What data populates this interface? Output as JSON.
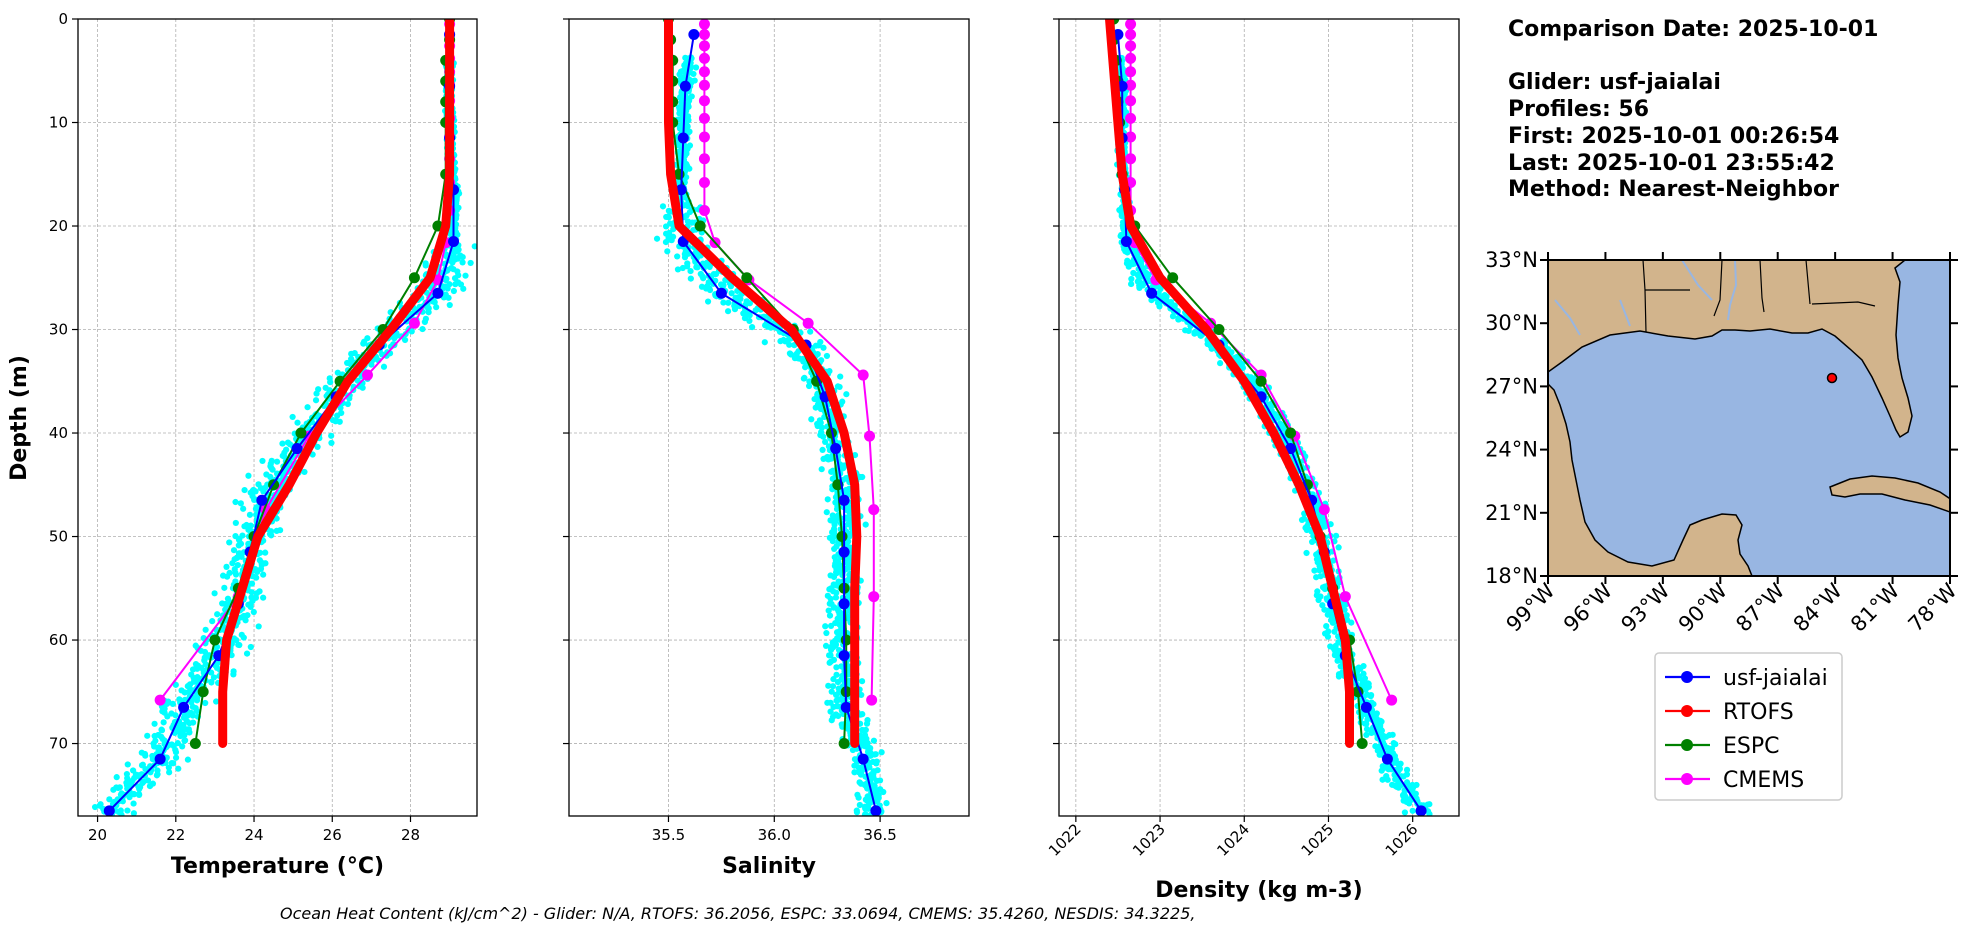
{
  "info": {
    "comparison_date": "Comparison Date: 2025-10-01",
    "glider": "Glider: usf-jaialai",
    "profiles": "Profiles: 56",
    "first": "First: 2025-10-01 00:26:54",
    "last": "Last: 2025-10-01 23:55:42",
    "method": "Method: Nearest-Neighbor"
  },
  "footer": "Ocean Heat Content (kJ/cm^2) - Glider: N/A,  RTOFS: 36.2056,  ESPC: 33.0694,  CMEMS: 35.4260,  NESDIS: 34.3225,",
  "colors": {
    "glider": "#0000ff",
    "rtofs": "#ff0000",
    "espc": "#008000",
    "cmems": "#ff00ff",
    "raw": "#00ffff",
    "land": "#d2b48c",
    "ocean": "#98b6e2"
  },
  "legend": [
    {
      "label": "usf-jaialai",
      "color": "#0000ff"
    },
    {
      "label": "RTOFS",
      "color": "#ff0000"
    },
    {
      "label": "ESPC",
      "color": "#008000"
    },
    {
      "label": "CMEMS",
      "color": "#ff00ff"
    }
  ],
  "map": {
    "lat_ticks": [
      "18°N",
      "21°N",
      "24°N",
      "27°N",
      "30°N",
      "33°N"
    ],
    "lon_ticks": [
      "99°W",
      "96°W",
      "93°W",
      "90°W",
      "87°W",
      "84°W",
      "81°W",
      "78°W"
    ],
    "extent": {
      "lon": [
        -99,
        -78
      ],
      "lat": [
        18,
        33
      ]
    },
    "glider_position": {
      "lon": -84.6,
      "lat": 27.6
    }
  },
  "chart_data": [
    {
      "type": "line",
      "xlabel": "Temperature (°C)",
      "ylabel": "Depth (m)",
      "xlim": [
        19.5,
        29.7
      ],
      "ylim": [
        77,
        0
      ],
      "xticks": [
        20,
        22,
        24,
        26,
        28
      ],
      "xtick_labels": [
        "20",
        "22",
        "24",
        "26",
        "28"
      ],
      "yticks": [
        0,
        10,
        20,
        30,
        40,
        50,
        60,
        70
      ],
      "ytick_labels": [
        "0",
        "10",
        "20",
        "30",
        "40",
        "50",
        "60",
        "70"
      ],
      "grid": true,
      "series": [
        {
          "name": "usf-jaialai",
          "depth": [
            1.5,
            6.5,
            11.5,
            16.5,
            21.5,
            26.5,
            31.5,
            36.5,
            41.5,
            46.5,
            51.5,
            56.5,
            61.5,
            66.5,
            71.5,
            76.5
          ],
          "values": [
            29.0,
            29.0,
            29.0,
            29.1,
            29.1,
            28.7,
            27.2,
            26.1,
            25.1,
            24.2,
            23.9,
            23.6,
            23.1,
            22.2,
            21.6,
            20.3
          ]
        },
        {
          "name": "RTOFS",
          "depth": [
            0,
            5,
            10,
            15,
            20,
            25,
            30,
            35,
            40,
            45,
            50,
            55,
            60,
            65,
            70
          ],
          "values": [
            29.0,
            29.0,
            29.0,
            29.0,
            28.9,
            28.5,
            27.5,
            26.4,
            25.6,
            24.9,
            24.1,
            23.7,
            23.3,
            23.2,
            23.2
          ]
        },
        {
          "name": "ESPC",
          "depth": [
            0,
            2,
            4,
            6,
            8,
            10,
            15,
            20,
            25,
            30,
            35,
            40,
            45,
            50,
            55,
            60,
            65,
            70
          ],
          "values": [
            29.0,
            29.0,
            28.9,
            28.9,
            28.9,
            28.9,
            28.9,
            28.7,
            28.1,
            27.3,
            26.2,
            25.2,
            24.5,
            24.0,
            23.6,
            23.0,
            22.7,
            22.5
          ]
        },
        {
          "name": "CMEMS",
          "depth": [
            0.5,
            1.5,
            2.6,
            3.8,
            5.1,
            6.4,
            7.9,
            9.6,
            11.4,
            13.5,
            15.8,
            18.5,
            21.6,
            25.2,
            29.4,
            34.4,
            40.3,
            47.4,
            55.8,
            65.8
          ],
          "values": [
            29.0,
            29.0,
            29.0,
            29.0,
            29.0,
            29.0,
            29.0,
            29.0,
            29.0,
            29.0,
            29.0,
            29.0,
            28.9,
            28.7,
            28.1,
            26.9,
            25.4,
            24.3,
            23.6,
            21.6
          ]
        }
      ]
    },
    {
      "type": "line",
      "xlabel": "Salinity",
      "xlim": [
        35.03,
        36.92
      ],
      "ylim": [
        77,
        0
      ],
      "xticks": [
        35.5,
        36.0,
        36.5
      ],
      "xtick_labels": [
        "35.5",
        "36.0",
        "36.5"
      ],
      "grid": true,
      "series": [
        {
          "name": "usf-jaialai",
          "depth": [
            1.5,
            6.5,
            11.5,
            16.5,
            21.5,
            26.5,
            31.5,
            36.5,
            41.5,
            46.5,
            51.5,
            56.5,
            61.5,
            66.5,
            71.5,
            76.5
          ],
          "values": [
            35.62,
            35.58,
            35.57,
            35.56,
            35.57,
            35.75,
            36.15,
            36.24,
            36.29,
            36.33,
            36.33,
            36.33,
            36.33,
            36.34,
            36.42,
            36.48
          ]
        },
        {
          "name": "RTOFS",
          "depth": [
            0,
            5,
            10,
            15,
            20,
            25,
            30,
            35,
            40,
            45,
            50,
            55,
            60,
            65,
            70
          ],
          "values": [
            35.5,
            35.5,
            35.5,
            35.51,
            35.55,
            35.8,
            36.08,
            36.25,
            36.33,
            36.38,
            36.39,
            36.38,
            36.38,
            36.38,
            36.38
          ]
        },
        {
          "name": "ESPC",
          "depth": [
            0,
            2,
            4,
            6,
            8,
            10,
            15,
            20,
            25,
            30,
            35,
            40,
            45,
            50,
            55,
            60,
            65,
            70
          ],
          "values": [
            35.5,
            35.51,
            35.52,
            35.52,
            35.52,
            35.52,
            35.55,
            35.65,
            35.87,
            36.09,
            36.2,
            36.27,
            36.3,
            36.32,
            36.33,
            36.34,
            36.34,
            36.33
          ]
        },
        {
          "name": "CMEMS",
          "depth": [
            0.5,
            1.5,
            2.6,
            3.8,
            5.1,
            6.4,
            7.9,
            9.6,
            11.4,
            13.5,
            15.8,
            18.5,
            21.6,
            25.2,
            29.4,
            34.4,
            40.3,
            47.4,
            55.8,
            65.8
          ],
          "values": [
            35.67,
            35.67,
            35.67,
            35.67,
            35.67,
            35.67,
            35.67,
            35.67,
            35.67,
            35.67,
            35.67,
            35.67,
            35.72,
            35.88,
            36.16,
            36.42,
            36.45,
            36.47,
            36.47,
            36.46
          ]
        }
      ]
    },
    {
      "type": "line",
      "xlabel": "Density (kg m-3)",
      "xlim": [
        1021.8,
        1026.55
      ],
      "ylim": [
        77,
        0
      ],
      "xticks": [
        1022,
        1023,
        1024,
        1025,
        1026
      ],
      "xtick_labels": [
        "1022",
        "1023",
        "1024",
        "1025",
        "1026"
      ],
      "grid": true,
      "series": [
        {
          "name": "usf-jaialai",
          "depth": [
            1.5,
            6.5,
            11.5,
            16.5,
            21.5,
            26.5,
            31.5,
            36.5,
            41.5,
            46.5,
            51.5,
            56.5,
            61.5,
            66.5,
            71.5,
            76.5
          ],
          "values": [
            1022.5,
            1022.55,
            1022.55,
            1022.58,
            1022.6,
            1022.9,
            1023.7,
            1024.2,
            1024.55,
            1024.8,
            1024.95,
            1025.05,
            1025.2,
            1025.45,
            1025.7,
            1026.1
          ]
        },
        {
          "name": "RTOFS",
          "depth": [
            0,
            5,
            10,
            15,
            20,
            25,
            30,
            35,
            40,
            45,
            50,
            55,
            60,
            65,
            70
          ],
          "values": [
            1022.4,
            1022.45,
            1022.5,
            1022.55,
            1022.65,
            1023.0,
            1023.55,
            1024.0,
            1024.35,
            1024.65,
            1024.9,
            1025.05,
            1025.2,
            1025.25,
            1025.25
          ]
        },
        {
          "name": "ESPC",
          "depth": [
            0,
            2,
            4,
            6,
            8,
            10,
            15,
            20,
            25,
            30,
            35,
            40,
            45,
            50,
            55,
            60,
            65,
            70
          ],
          "values": [
            1022.45,
            1022.45,
            1022.48,
            1022.5,
            1022.5,
            1022.52,
            1022.55,
            1022.7,
            1023.15,
            1023.7,
            1024.2,
            1024.55,
            1024.75,
            1024.9,
            1025.05,
            1025.25,
            1025.35,
            1025.4
          ]
        },
        {
          "name": "CMEMS",
          "depth": [
            0.5,
            1.5,
            2.6,
            3.8,
            5.1,
            6.4,
            7.9,
            9.6,
            11.4,
            13.5,
            15.8,
            18.5,
            21.6,
            25.2,
            29.4,
            34.4,
            40.3,
            47.4,
            55.8,
            65.8
          ],
          "values": [
            1022.65,
            1022.65,
            1022.65,
            1022.65,
            1022.65,
            1022.65,
            1022.65,
            1022.65,
            1022.65,
            1022.65,
            1022.65,
            1022.65,
            1022.7,
            1022.95,
            1023.6,
            1024.2,
            1024.6,
            1024.95,
            1025.2,
            1025.75
          ]
        }
      ]
    }
  ]
}
